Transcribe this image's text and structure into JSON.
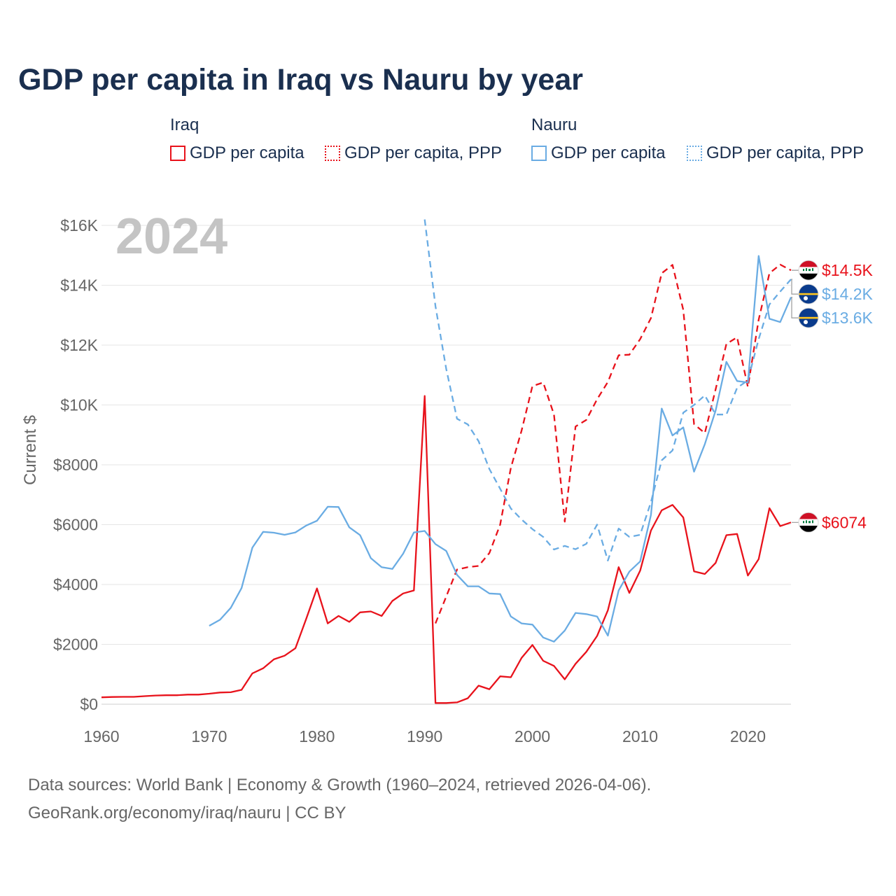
{
  "title": "GDP per capita in Iraq vs Nauru by year",
  "legend": {
    "groups": [
      {
        "name": "Iraq",
        "items": [
          {
            "label": "GDP per capita",
            "color": "#e8121b",
            "style": "solid"
          },
          {
            "label": "GDP per capita, PPP",
            "color": "#e8121b",
            "style": "dotted"
          }
        ]
      },
      {
        "name": "Nauru",
        "items": [
          {
            "label": "GDP per capita",
            "color": "#6aace3",
            "style": "solid"
          },
          {
            "label": "GDP per capita, PPP",
            "color": "#6aace3",
            "style": "dotted"
          }
        ]
      }
    ]
  },
  "footer": {
    "line1": "Data sources: World Bank | Economy & Growth (1960–2024, retrieved 2026-04-06).",
    "line2": "GeoRank.org/economy/iraq/nauru | CC BY"
  },
  "chart_data": {
    "type": "line",
    "year_label": "2024",
    "ylabel": "Current $",
    "xlabel": "",
    "xlim": [
      1960,
      2024
    ],
    "ylim": [
      0,
      16000
    ],
    "x_ticks": [
      {
        "value": 1960,
        "label": "1960"
      },
      {
        "value": 1970,
        "label": "1970"
      },
      {
        "value": 1980,
        "label": "1980"
      },
      {
        "value": 1990,
        "label": "1990"
      },
      {
        "value": 2000,
        "label": "2000"
      },
      {
        "value": 2010,
        "label": "2010"
      },
      {
        "value": 2020,
        "label": "2020"
      }
    ],
    "y_ticks": [
      {
        "value": 0,
        "label": "$0"
      },
      {
        "value": 2000,
        "label": "$2000"
      },
      {
        "value": 4000,
        "label": "$4000"
      },
      {
        "value": 6000,
        "label": "$6000"
      },
      {
        "value": 8000,
        "label": "$8000"
      },
      {
        "value": 10000,
        "label": "$10K"
      },
      {
        "value": 12000,
        "label": "$12K"
      },
      {
        "value": 14000,
        "label": "$14K"
      },
      {
        "value": 16000,
        "label": "$16K"
      }
    ],
    "grid": true,
    "series": [
      {
        "name": "Iraq GDP per capita",
        "color": "#e8121b",
        "dash": "solid",
        "x": [
          1960,
          1961,
          1962,
          1963,
          1964,
          1965,
          1966,
          1967,
          1968,
          1969,
          1970,
          1971,
          1972,
          1973,
          1974,
          1975,
          1976,
          1977,
          1978,
          1979,
          1980,
          1981,
          1982,
          1983,
          1984,
          1985,
          1986,
          1987,
          1988,
          1989,
          1990,
          1991,
          1992,
          1993,
          1994,
          1995,
          1996,
          1997,
          1998,
          1999,
          2000,
          2001,
          2002,
          2003,
          2004,
          2005,
          2006,
          2007,
          2008,
          2009,
          2010,
          2011,
          2012,
          2013,
          2014,
          2015,
          2016,
          2017,
          2018,
          2019,
          2020,
          2021,
          2022,
          2023,
          2024
        ],
        "values": [
          230,
          240,
          245,
          245,
          270,
          290,
          300,
          300,
          320,
          320,
          350,
          390,
          400,
          480,
          1030,
          1200,
          1500,
          1620,
          1870,
          2850,
          3870,
          2700,
          2950,
          2750,
          3070,
          3100,
          2950,
          3450,
          3700,
          3800,
          10300,
          40,
          40,
          60,
          200,
          620,
          500,
          930,
          900,
          1550,
          1980,
          1450,
          1280,
          830,
          1350,
          1750,
          2280,
          3140,
          4580,
          3720,
          4460,
          5800,
          6480,
          6660,
          6240,
          4440,
          4350,
          4720,
          5650,
          5690,
          4300,
          4850,
          6550,
          5950,
          6074
        ],
        "end_label": "$6074",
        "flag": "iraq"
      },
      {
        "name": "Iraq GDP per capita, PPP",
        "color": "#e8121b",
        "dash": "dashed",
        "x": [
          1991,
          1992,
          1993,
          1994,
          1995,
          1996,
          1997,
          1998,
          1999,
          2000,
          2001,
          2002,
          2003,
          2004,
          2005,
          2006,
          2007,
          2008,
          2009,
          2010,
          2011,
          2012,
          2013,
          2014,
          2015,
          2016,
          2017,
          2018,
          2019,
          2020,
          2021,
          2022,
          2023,
          2024
        ],
        "values": [
          2700,
          3600,
          4500,
          4580,
          4620,
          5050,
          6000,
          7900,
          9150,
          10630,
          10750,
          9680,
          6100,
          9280,
          9500,
          10190,
          10770,
          11660,
          11680,
          12200,
          12900,
          14400,
          14680,
          13180,
          9360,
          9060,
          10520,
          12040,
          12260,
          10600,
          12850,
          14400,
          14690,
          14500
        ],
        "end_label": "$14.5K",
        "flag": "iraq"
      },
      {
        "name": "Nauru GDP per capita",
        "color": "#6aace3",
        "dash": "solid",
        "x": [
          1970,
          1971,
          1972,
          1973,
          1974,
          1975,
          1976,
          1977,
          1978,
          1979,
          1980,
          1981,
          1982,
          1983,
          1984,
          1985,
          1986,
          1987,
          1988,
          1989,
          1990,
          1991,
          1992,
          1993,
          1994,
          1995,
          1996,
          1997,
          1998,
          1999,
          2000,
          2001,
          2002,
          2003,
          2004,
          2005,
          2006,
          2007,
          2008,
          2009,
          2010,
          2011,
          2012,
          2013,
          2014,
          2015,
          2016,
          2017,
          2018,
          2019,
          2020,
          2021,
          2022,
          2023,
          2024
        ],
        "values": [
          2620,
          2820,
          3220,
          3880,
          5230,
          5760,
          5730,
          5660,
          5740,
          5970,
          6130,
          6600,
          6590,
          5910,
          5650,
          4880,
          4580,
          4520,
          5030,
          5740,
          5790,
          5350,
          5120,
          4320,
          3940,
          3940,
          3700,
          3680,
          2930,
          2700,
          2660,
          2230,
          2090,
          2460,
          3050,
          3010,
          2930,
          2290,
          3800,
          4430,
          4770,
          6320,
          9880,
          8980,
          9250,
          7770,
          8690,
          9810,
          11440,
          10800,
          10750,
          14980,
          12880,
          12770,
          13600
        ],
        "end_label": "$13.6K",
        "flag": "nauru"
      },
      {
        "name": "Nauru GDP per capita, PPP",
        "color": "#6aace3",
        "dash": "dashed",
        "x": [
          1990,
          1991,
          1992,
          1993,
          1994,
          1995,
          1996,
          1997,
          1998,
          1999,
          2000,
          2001,
          2002,
          2003,
          2004,
          2005,
          2006,
          2007,
          2008,
          2009,
          2010,
          2011,
          2012,
          2013,
          2014,
          2015,
          2016,
          2017,
          2018,
          2019,
          2020,
          2021,
          2022,
          2023,
          2024
        ],
        "values": [
          16200,
          13300,
          11200,
          9540,
          9350,
          8790,
          7860,
          7200,
          6540,
          6170,
          5850,
          5590,
          5170,
          5290,
          5180,
          5360,
          6000,
          4800,
          5870,
          5590,
          5660,
          6750,
          8150,
          8480,
          9740,
          10000,
          10320,
          9680,
          9680,
          10570,
          10820,
          12200,
          13360,
          13790,
          14200
        ],
        "end_label": "$14.2K",
        "flag": "nauru"
      }
    ]
  }
}
